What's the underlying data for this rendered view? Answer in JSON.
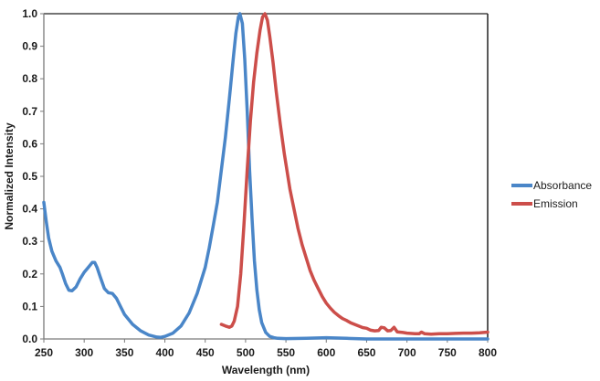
{
  "chart_data": {
    "type": "line",
    "title": "",
    "xlabel": "Wavelength (nm)",
    "ylabel": "Normalized Intensity",
    "xlim": [
      250,
      800
    ],
    "ylim": [
      0.0,
      1.0
    ],
    "x_ticks": [
      250,
      300,
      350,
      400,
      450,
      500,
      550,
      600,
      650,
      700,
      750,
      800
    ],
    "x_tick_labels": [
      "250",
      "300",
      "350",
      "400",
      "450",
      "500",
      "550",
      "600",
      "650",
      "700",
      "750",
      "800"
    ],
    "y_ticks": [
      0.0,
      0.1,
      0.2,
      0.3,
      0.4,
      0.5,
      0.6,
      0.7,
      0.8,
      0.9,
      1.0
    ],
    "y_tick_labels": [
      "0.0",
      "0.1",
      "0.2",
      "0.3",
      "0.4",
      "0.5",
      "0.6",
      "0.7",
      "0.8",
      "0.9",
      "1.0"
    ],
    "grid": false,
    "legend_position": "right",
    "series": [
      {
        "name": "Absorbance",
        "color": "#4a86c8",
        "x": [
          250,
          253,
          256,
          260,
          265,
          270,
          273,
          277,
          281,
          285,
          290,
          295,
          300,
          305,
          310,
          313,
          316,
          320,
          325,
          330,
          335,
          340,
          345,
          350,
          355,
          360,
          370,
          380,
          390,
          395,
          400,
          410,
          420,
          430,
          440,
          450,
          455,
          460,
          465,
          470,
          475,
          480,
          485,
          488,
          491,
          493,
          496,
          499,
          502,
          505,
          508,
          511,
          514,
          517,
          520,
          525,
          530,
          535,
          540,
          550,
          575,
          600,
          625,
          650,
          700,
          750,
          800
        ],
        "y": [
          0.42,
          0.36,
          0.31,
          0.27,
          0.24,
          0.22,
          0.2,
          0.17,
          0.15,
          0.148,
          0.16,
          0.185,
          0.205,
          0.22,
          0.235,
          0.235,
          0.22,
          0.19,
          0.155,
          0.142,
          0.14,
          0.125,
          0.1,
          0.075,
          0.06,
          0.045,
          0.025,
          0.012,
          0.006,
          0.005,
          0.008,
          0.018,
          0.04,
          0.08,
          0.14,
          0.22,
          0.28,
          0.35,
          0.42,
          0.52,
          0.62,
          0.74,
          0.87,
          0.94,
          0.99,
          1.0,
          0.97,
          0.86,
          0.7,
          0.52,
          0.37,
          0.24,
          0.15,
          0.09,
          0.05,
          0.02,
          0.008,
          0.004,
          0.002,
          0.001,
          0.002,
          0.004,
          0.002,
          0.0,
          0.0,
          0.0,
          0.0
        ]
      },
      {
        "name": "Emission",
        "color": "#cc4e4a",
        "x": [
          470,
          475,
          480,
          483,
          486,
          490,
          494,
          498,
          502,
          506,
          510,
          514,
          518,
          521,
          524,
          527,
          530,
          534,
          538,
          543,
          548,
          555,
          560,
          565,
          570,
          575,
          580,
          585,
          590,
          595,
          600,
          605,
          610,
          615,
          620,
          625,
          630,
          635,
          640,
          645,
          650,
          655,
          660,
          665,
          668,
          672,
          676,
          680,
          684,
          688,
          695,
          700,
          710,
          715,
          718,
          722,
          730,
          740,
          750,
          760,
          770,
          780,
          790,
          800
        ],
        "y": [
          0.045,
          0.04,
          0.036,
          0.04,
          0.055,
          0.1,
          0.2,
          0.35,
          0.52,
          0.67,
          0.79,
          0.88,
          0.95,
          0.99,
          1.0,
          0.98,
          0.93,
          0.85,
          0.76,
          0.66,
          0.57,
          0.46,
          0.4,
          0.34,
          0.29,
          0.25,
          0.21,
          0.18,
          0.155,
          0.13,
          0.11,
          0.095,
          0.082,
          0.072,
          0.063,
          0.057,
          0.05,
          0.045,
          0.04,
          0.035,
          0.033,
          0.027,
          0.025,
          0.026,
          0.036,
          0.034,
          0.025,
          0.026,
          0.036,
          0.022,
          0.02,
          0.018,
          0.016,
          0.016,
          0.021,
          0.016,
          0.015,
          0.016,
          0.016,
          0.017,
          0.018,
          0.018,
          0.019,
          0.021
        ]
      }
    ]
  },
  "legend": {
    "items": [
      {
        "label": "Absorbance",
        "color": "#4a86c8"
      },
      {
        "label": "Emission",
        "color": "#cc4e4a"
      }
    ]
  }
}
